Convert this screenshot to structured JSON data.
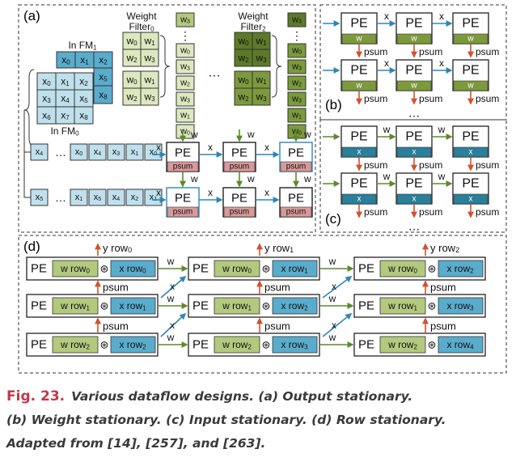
{
  "panels": {
    "a": "(a)",
    "b": "(b)",
    "c": "(c)",
    "d": "(d)"
  },
  "a": {
    "weight_filter_0": [
      "Weight",
      "Filter",
      "0"
    ],
    "weight_filter_2": [
      "Weight",
      "Filter",
      "2"
    ],
    "in_fm_1": [
      "In FM",
      "1"
    ],
    "in_fm_0": [
      "In FM",
      "0"
    ],
    "fm1_cells": [
      [
        "x",
        "0"
      ],
      [
        "x",
        "1"
      ],
      [
        "x",
        "2"
      ],
      [
        "x",
        "5"
      ],
      [
        "x",
        "8"
      ]
    ],
    "fm0_cells": [
      [
        "x",
        "0"
      ],
      [
        "x",
        "1"
      ],
      [
        "x",
        "2"
      ],
      [
        "x",
        "3"
      ],
      [
        "x",
        "4"
      ],
      [
        "x",
        "5"
      ],
      [
        "x",
        "6"
      ],
      [
        "x",
        "7"
      ],
      [
        "x",
        "8"
      ]
    ],
    "wf0_cells": [
      [
        "w",
        "0"
      ],
      [
        "w",
        "1"
      ],
      [
        "w",
        "2"
      ],
      [
        "w",
        "3"
      ],
      [
        "w",
        "0"
      ],
      [
        "w",
        "1"
      ],
      [
        "w",
        "2"
      ],
      [
        "w",
        "3"
      ]
    ],
    "stream_col": [
      [
        "w",
        "3"
      ],
      "⋮",
      [
        "w",
        "0"
      ],
      [
        "w",
        "3"
      ],
      [
        "w",
        "2"
      ],
      [
        "w",
        "3"
      ],
      [
        "w",
        "1"
      ],
      [
        "w",
        "0"
      ]
    ],
    "ellipsis": "…",
    "x_row1": [
      [
        "x",
        "4"
      ],
      "…",
      [
        "x",
        "0"
      ],
      [
        "x",
        "4"
      ],
      [
        "x",
        "3"
      ],
      [
        "x",
        "1"
      ],
      [
        "x",
        "0"
      ]
    ],
    "x_row2": [
      [
        "x",
        "5"
      ],
      "…",
      [
        "x",
        "1"
      ],
      [
        "x",
        "5"
      ],
      [
        "x",
        "4"
      ],
      [
        "x",
        "2"
      ],
      [
        "x",
        "1"
      ]
    ],
    "pe": "PE",
    "psum": "psum",
    "w": "w",
    "x": "x"
  },
  "b": {
    "pe": "PE",
    "cell": "w",
    "edge": "x",
    "out": "psum",
    "more": "…"
  },
  "c": {
    "pe": "PE",
    "cell": "x",
    "edge": "w",
    "out": "psum",
    "more": "…"
  },
  "d": {
    "pe": "PE",
    "conv": "⊛",
    "outputs": [
      [
        "y row",
        "0"
      ],
      [
        "y row",
        "1"
      ],
      [
        "y row",
        "2"
      ]
    ],
    "w_labels": [
      [
        [
          "w row",
          "0"
        ],
        [
          "w row",
          "0"
        ],
        [
          "w row",
          "0"
        ]
      ],
      [
        [
          "w row",
          "1"
        ],
        [
          "w row",
          "1"
        ],
        [
          "w row",
          "1"
        ]
      ],
      [
        [
          "w row",
          "2"
        ],
        [
          "w row",
          "2"
        ],
        [
          "w row",
          "2"
        ]
      ]
    ],
    "x_labels": [
      [
        [
          "x row",
          "0"
        ],
        [
          "x row",
          "1"
        ],
        [
          "x row",
          "2"
        ]
      ],
      [
        [
          "x row",
          "1"
        ],
        [
          "x row",
          "2"
        ],
        [
          "x row",
          "3"
        ]
      ],
      [
        [
          "x row",
          "2"
        ],
        [
          "x row",
          "3"
        ],
        [
          "x row",
          "4"
        ]
      ]
    ],
    "psum": "psum",
    "w": "w",
    "x": "x"
  },
  "caption": {
    "label": "Fig. 23.",
    "lines": [
      "Various dataflow designs. (a) Output stationary.",
      "(b) Weight stationary. (c) Input stationary. (d) Row stationary.",
      "Adapted from [14], [257], and [263]."
    ]
  },
  "colors": {
    "blue": "#5aaccc",
    "blue_light": "#bfe0ec",
    "blue_dark": "#2a7f9a",
    "green_light": "#dde8bf",
    "green": "#b3c97e",
    "green_dark": "#5c7a28",
    "green_mid": "#7c9a3c",
    "psum_fill": "#d9989a",
    "arrow_red": "#d0532f",
    "arrow_blue": "#2e86b8",
    "arrow_green": "#5b8a2e"
  }
}
